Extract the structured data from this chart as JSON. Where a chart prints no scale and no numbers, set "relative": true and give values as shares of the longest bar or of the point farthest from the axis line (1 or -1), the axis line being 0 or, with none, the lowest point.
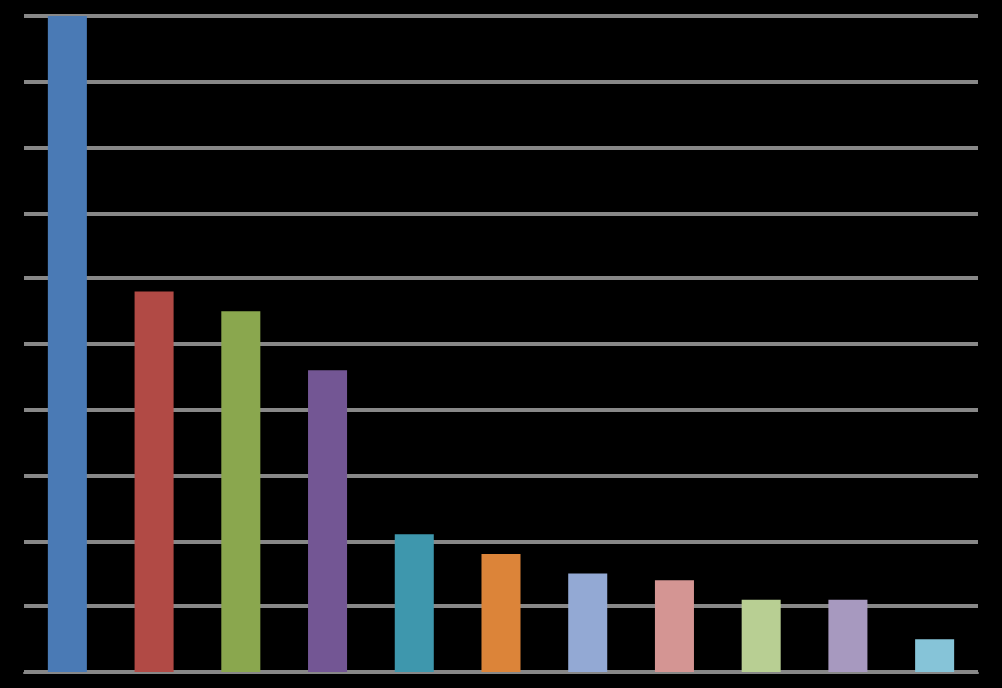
{
  "chart_data": {
    "type": "bar",
    "relative": true,
    "grid": "y",
    "categories": [
      null,
      null,
      null,
      null,
      null,
      null,
      null,
      null,
      null,
      null,
      null
    ],
    "values": [
      1,
      0.58,
      0.55,
      0.46,
      0.21,
      0.18,
      0.15,
      0.14,
      0.11,
      0.11,
      0.05
    ],
    "colors": [
      "#4a7ab5",
      "#b14a45",
      "#8aa74e",
      "#735694",
      "#3e97ad",
      "#dc8439",
      "#93a9d4",
      "#d49593",
      "#b8cf93",
      "#a799bf",
      "#86c4d8"
    ]
  }
}
